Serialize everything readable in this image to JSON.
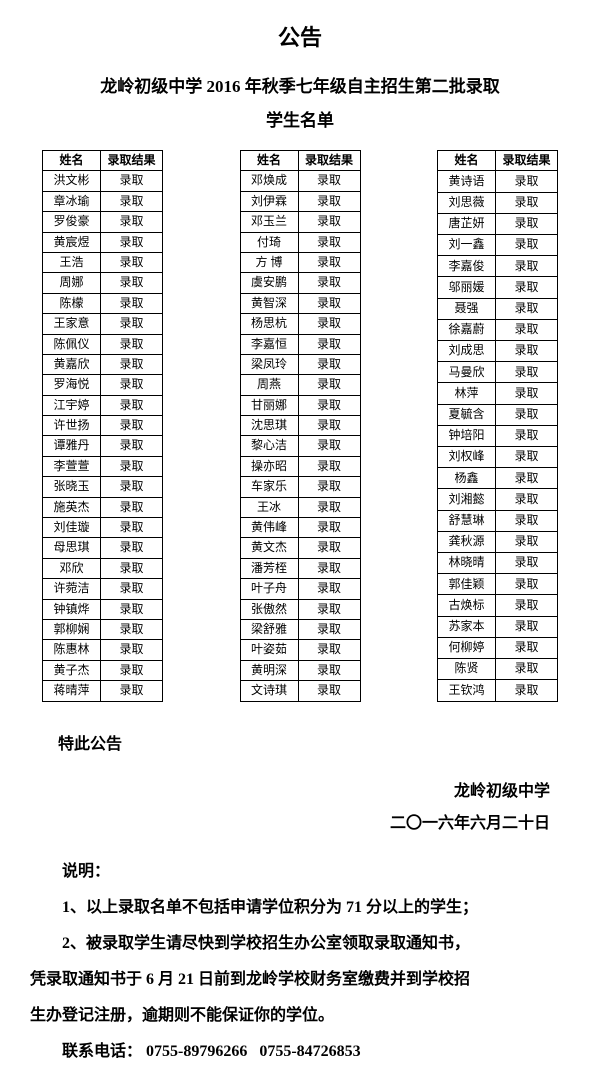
{
  "title": "公告",
  "subtitle_line1": "龙岭初级中学 2016 年秋季七年级自主招生第二批录取",
  "subtitle_line2": "学生名单",
  "headers": {
    "name": "姓名",
    "result": "录取结果"
  },
  "result_text": "录取",
  "columns": [
    [
      "洪文彬",
      "章冰瑜",
      "罗俊豪",
      "黄宸煜",
      "王浩",
      "周娜",
      "陈檬",
      "王家意",
      "陈佩仪",
      "黄嘉欣",
      "罗海悦",
      "江宇婷",
      "许世扬",
      "谭雅丹",
      "李萱萱",
      "张晓玉",
      "施英杰",
      "刘佳璇",
      "母思琪",
      "邓欣",
      "许菀洁",
      "钟镇烨",
      "郭柳娴",
      "陈惠林",
      "黄子杰",
      "蒋晴萍"
    ],
    [
      "邓焕成",
      "刘伊霖",
      "邓玉兰",
      "付琦",
      "方 博",
      "虞安鹏",
      "黄智深",
      "杨思杭",
      "李嘉恒",
      "梁凤玲",
      "周燕",
      "甘丽娜",
      "沈思琪",
      "黎心洁",
      "操亦昭",
      "车家乐",
      "王冰",
      "黄伟峰",
      "黄文杰",
      "潘芳桎",
      "叶子舟",
      "张傲然",
      "梁舒雅",
      "叶姿茹",
      "黄明深",
      "文诗琪"
    ],
    [
      "黄诗语",
      "刘思薇",
      "唐芷妍",
      "刘一鑫",
      "李嘉俊",
      "邬丽媛",
      "聂强",
      "徐嘉蔚",
      "刘成思",
      "马曼欣",
      "林萍",
      "夏毓含",
      "钟培阳",
      "刘权峰",
      "杨鑫",
      "刘湘懿",
      "舒慧琳",
      "龚秋源",
      "林晓晴",
      "郭佳颖",
      "古焕标",
      "苏家本",
      "何柳婷",
      "陈贤",
      "王钦鸿"
    ]
  ],
  "closing": "特此公告",
  "signature_org": "龙岭初级中学",
  "signature_date": "二〇一六年六月二十日",
  "notes_heading": "说明：",
  "note1": "1、以上录取名单不包括申请学位积分为 71 分以上的学生；",
  "note2a": "2、被录取学生请尽快到学校招生办公室领取录取通知书，",
  "note2b": "凭录取通知书于 6 月 21 日前到龙岭学校财务室缴费并到学校招",
  "note2c": "生办登记注册，逾期则不能保证你的学位。",
  "contact_label": "联系电话：",
  "phone1": "0755-89796266",
  "phone2": "0755-84726853"
}
